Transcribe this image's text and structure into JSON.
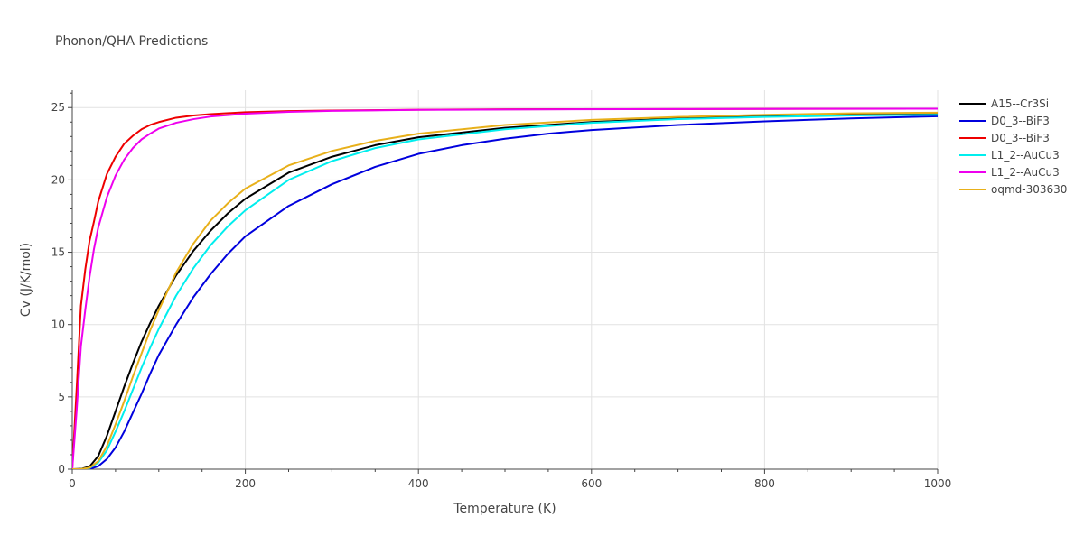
{
  "chart_data": {
    "type": "line",
    "title": "Phonon/QHA Predictions",
    "xlabel": "Temperature (K)",
    "ylabel": "Cv (J/K/mol)",
    "xlim": [
      0,
      1000
    ],
    "ylim": [
      0,
      26.2
    ],
    "x_ticks": [
      0,
      200,
      400,
      600,
      800,
      1000
    ],
    "y_ticks": [
      0,
      5,
      10,
      15,
      20,
      25
    ],
    "x_tick_labels": [
      "0",
      "200",
      "400",
      "600",
      "800",
      "1000"
    ],
    "y_tick_labels": [
      "0",
      "5",
      "10",
      "15",
      "20",
      "25"
    ],
    "grid": true,
    "legend_position": "right",
    "series": [
      {
        "name": "A15--Cr3Si",
        "color": "#000000",
        "x": [
          0,
          10,
          20,
          30,
          40,
          50,
          60,
          70,
          80,
          90,
          100,
          120,
          140,
          160,
          180,
          200,
          250,
          300,
          350,
          400,
          500,
          600,
          700,
          800,
          900,
          1000
        ],
        "y": [
          0,
          0.02,
          0.18,
          0.9,
          2.3,
          4.0,
          5.7,
          7.3,
          8.8,
          10.1,
          11.3,
          13.4,
          15.1,
          16.5,
          17.7,
          18.7,
          20.5,
          21.6,
          22.4,
          22.95,
          23.6,
          24.0,
          24.25,
          24.4,
          24.5,
          24.55
        ]
      },
      {
        "name": "D0_3--BiF3",
        "color": "#0000dd",
        "x": [
          0,
          10,
          20,
          30,
          40,
          50,
          60,
          70,
          80,
          90,
          100,
          120,
          140,
          160,
          180,
          200,
          250,
          300,
          350,
          400,
          450,
          500,
          550,
          600,
          700,
          800,
          900,
          1000
        ],
        "y": [
          0,
          0,
          0.02,
          0.2,
          0.7,
          1.5,
          2.6,
          3.9,
          5.2,
          6.6,
          7.9,
          10.0,
          11.9,
          13.5,
          14.9,
          16.1,
          18.2,
          19.7,
          20.9,
          21.8,
          22.4,
          22.85,
          23.2,
          23.45,
          23.8,
          24.05,
          24.25,
          24.4
        ]
      },
      {
        "name": "D0_3--BiF3",
        "color": "#ee0000",
        "x": [
          0,
          5,
          10,
          15,
          20,
          25,
          30,
          40,
          50,
          60,
          70,
          80,
          90,
          100,
          120,
          140,
          160,
          200,
          250,
          300,
          400,
          500,
          700,
          1000
        ],
        "y": [
          0,
          5.5,
          11.3,
          13.8,
          15.8,
          17.1,
          18.5,
          20.4,
          21.6,
          22.5,
          23.05,
          23.5,
          23.8,
          24.0,
          24.3,
          24.45,
          24.55,
          24.68,
          24.76,
          24.8,
          24.85,
          24.88,
          24.9,
          24.92
        ]
      },
      {
        "name": "L1_2--AuCu3",
        "color": "#00eeee",
        "x": [
          0,
          10,
          20,
          30,
          40,
          50,
          60,
          70,
          80,
          90,
          100,
          120,
          140,
          160,
          180,
          200,
          250,
          300,
          350,
          400,
          500,
          600,
          700,
          800,
          900,
          1000
        ],
        "y": [
          0,
          0.01,
          0.08,
          0.45,
          1.3,
          2.6,
          4.0,
          5.5,
          7.0,
          8.4,
          9.7,
          12.0,
          13.9,
          15.5,
          16.8,
          17.9,
          20.0,
          21.3,
          22.2,
          22.8,
          23.5,
          23.95,
          24.2,
          24.35,
          24.45,
          24.5
        ]
      },
      {
        "name": "L1_2--AuCu3",
        "color": "#ee00ee",
        "x": [
          0,
          5,
          10,
          15,
          20,
          25,
          30,
          40,
          50,
          60,
          70,
          80,
          90,
          100,
          120,
          140,
          160,
          200,
          250,
          300,
          400,
          500,
          700,
          1000
        ],
        "y": [
          0,
          4.0,
          8.5,
          11.0,
          13.3,
          15.2,
          16.7,
          18.8,
          20.3,
          21.4,
          22.2,
          22.8,
          23.2,
          23.55,
          23.95,
          24.2,
          24.38,
          24.58,
          24.7,
          24.77,
          24.84,
          24.87,
          24.9,
          24.92
        ]
      },
      {
        "name": "oqmd-303630",
        "color": "#e8b01a",
        "x": [
          0,
          10,
          20,
          30,
          40,
          50,
          60,
          70,
          80,
          90,
          100,
          120,
          140,
          160,
          180,
          200,
          250,
          300,
          350,
          400,
          500,
          600,
          700,
          800,
          900,
          1000
        ],
        "y": [
          0,
          0.01,
          0.1,
          0.55,
          1.6,
          3.1,
          4.7,
          6.4,
          8.0,
          9.6,
          11.0,
          13.6,
          15.6,
          17.2,
          18.4,
          19.4,
          21.0,
          22.0,
          22.7,
          23.2,
          23.8,
          24.15,
          24.35,
          24.5,
          24.6,
          24.65
        ]
      }
    ]
  }
}
